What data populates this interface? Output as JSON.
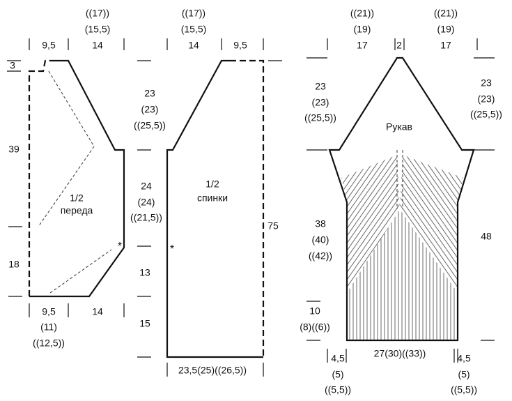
{
  "front": {
    "top_left": "9,5",
    "top_right": [
      "((17))",
      "(15,5)",
      "14"
    ],
    "left": [
      "3",
      "39",
      "18"
    ],
    "shoulder": [
      "23",
      "(23)",
      "((25,5))"
    ],
    "armhole": [
      "24",
      "(24)",
      "((21,5))"
    ],
    "side_lower": [
      "13",
      "15"
    ],
    "bottom_left": [
      "9,5",
      "(11)",
      "((12,5))"
    ],
    "bottom_right": "14",
    "label": [
      "1/2",
      "переда"
    ],
    "mark": "*"
  },
  "back": {
    "top_left": [
      "((17))",
      "(15,5)",
      "14"
    ],
    "top_right": "9,5",
    "label": [
      "1/2",
      "спинки"
    ],
    "height": "75",
    "bottom": "23,5(25)((26,5))",
    "mark": "*"
  },
  "sleeve": {
    "top_left": [
      "((21))",
      "(19)",
      "17"
    ],
    "top_center": "2",
    "top_right": [
      "((21))",
      "(19)",
      "17"
    ],
    "label": "Рукав",
    "cap_left": [
      "23",
      "(23)",
      "((25,5))"
    ],
    "cap_right": [
      "23",
      "(23)",
      "((25,5))"
    ],
    "middle_left": [
      "38",
      "(40)",
      "((42))"
    ],
    "length": "48",
    "cuff_left": [
      "10",
      "(8)((6))"
    ],
    "bottom_left": [
      "4,5",
      "(5)",
      "((5,5))"
    ],
    "bottom_center": "27(30)((33))",
    "bottom_right": [
      "4,5",
      "(5)",
      "((5,5))"
    ]
  }
}
